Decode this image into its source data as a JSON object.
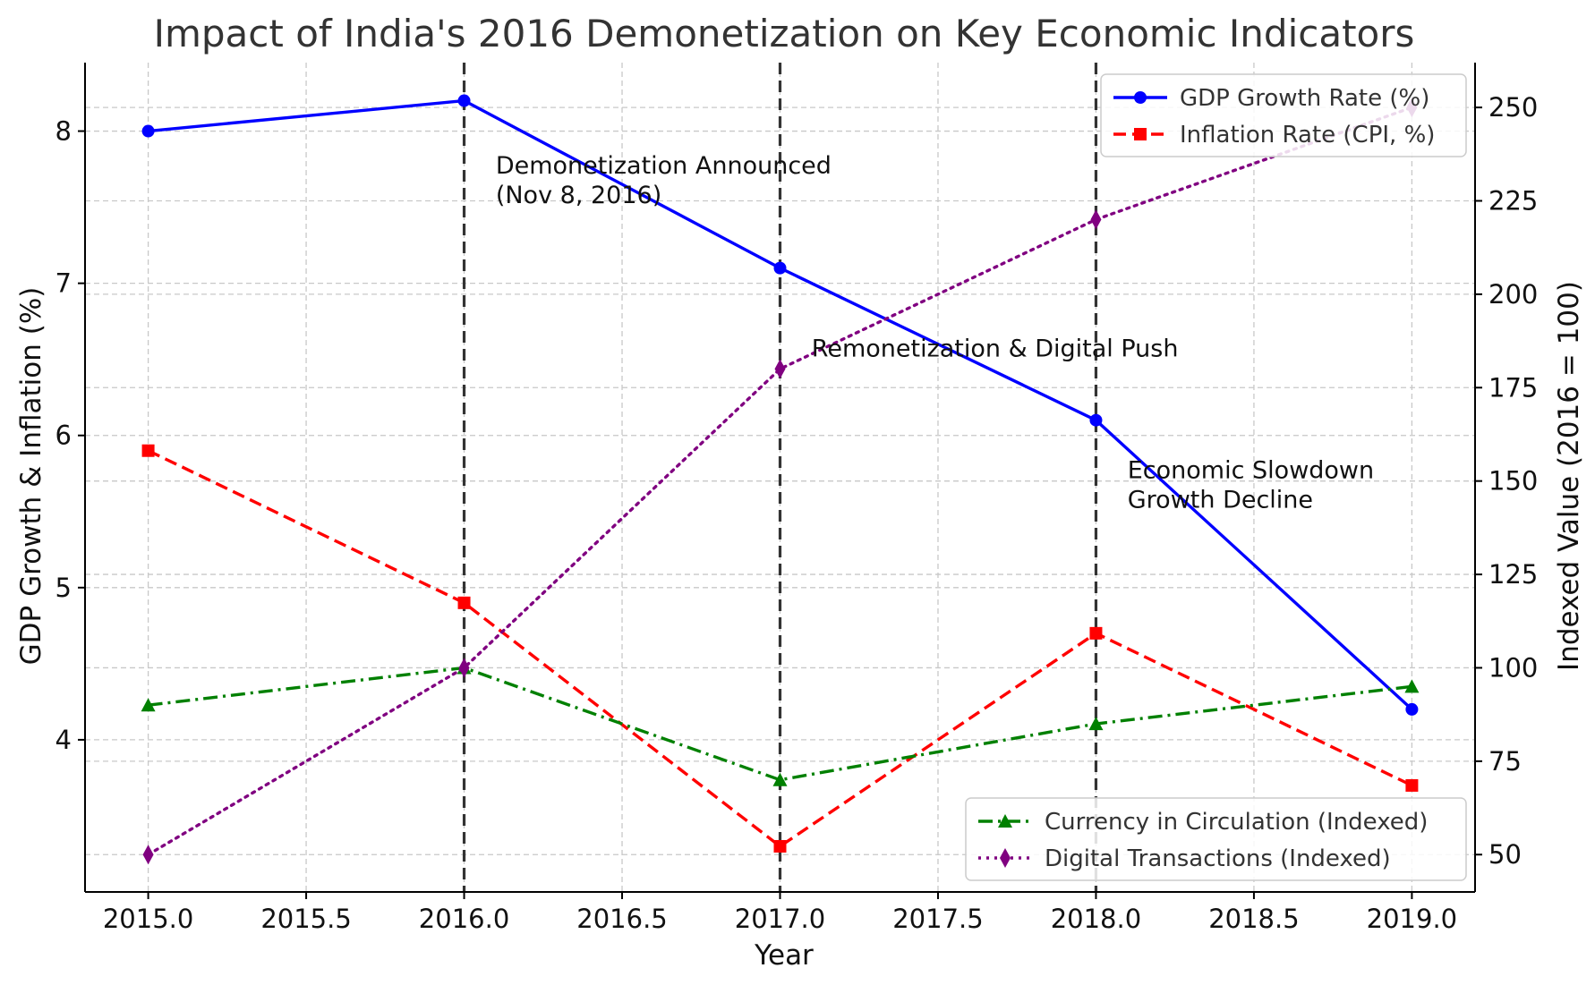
{
  "chart_data": {
    "type": "line",
    "title": "Impact of India's 2016 Demonetization on Key Economic Indicators",
    "xlabel": "Year",
    "ylabel_left": "GDP Growth & Inflation (%)",
    "ylabel_right": "Indexed Value (2016 = 100)",
    "x": [
      2015,
      2016,
      2017,
      2018,
      2019
    ],
    "xlim": [
      2014.8,
      2019.2
    ],
    "ylim_left": [
      3.0,
      8.45
    ],
    "ylim_right": [
      40,
      262
    ],
    "xticks": [
      2015.0,
      2015.5,
      2016.0,
      2016.5,
      2017.0,
      2017.5,
      2018.0,
      2018.5,
      2019.0
    ],
    "xtick_labels": [
      "2015.0",
      "2015.5",
      "2016.0",
      "2016.5",
      "2017.0",
      "2017.5",
      "2018.0",
      "2018.5",
      "2019.0"
    ],
    "yticks_left": [
      4,
      5,
      6,
      7,
      8
    ],
    "ytick_labels_left": [
      "4",
      "5",
      "6",
      "7",
      "8"
    ],
    "yticks_right": [
      50,
      75,
      100,
      125,
      150,
      175,
      200,
      225,
      250
    ],
    "ytick_labels_right": [
      "50",
      "75",
      "100",
      "125",
      "150",
      "175",
      "200",
      "225",
      "250"
    ],
    "grid": true,
    "series": [
      {
        "name": "GDP Growth Rate (%)",
        "axis": "left",
        "values": [
          8.0,
          8.2,
          7.1,
          6.1,
          4.2
        ],
        "color": "#0000ff",
        "style": "solid",
        "marker": "circle"
      },
      {
        "name": "Inflation Rate (CPI, %)",
        "axis": "left",
        "values": [
          5.9,
          4.9,
          3.3,
          4.7,
          3.7
        ],
        "color": "#ff0000",
        "style": "dashed",
        "marker": "square"
      },
      {
        "name": "Currency in Circulation (Indexed)",
        "axis": "right",
        "values": [
          90,
          100,
          70,
          85,
          95
        ],
        "color": "#008000",
        "style": "dashdot",
        "marker": "triangle"
      },
      {
        "name": "Digital Transactions (Indexed)",
        "axis": "right",
        "values": [
          50,
          100,
          180,
          220,
          250
        ],
        "color": "#800080",
        "style": "dotted",
        "marker": "diamond"
      }
    ],
    "vlines": [
      2016,
      2017,
      2018
    ],
    "annotations": [
      {
        "x": 2016.1,
        "y": 7.72,
        "lines": [
          "Demonetization Announced",
          "(Nov 8, 2016)"
        ]
      },
      {
        "x": 2017.1,
        "y": 6.52,
        "lines": [
          "Remonetization & Digital Push"
        ]
      },
      {
        "x": 2018.1,
        "y": 5.72,
        "lines": [
          "Economic Slowdown",
          "Growth Decline"
        ]
      }
    ],
    "legend_upper": {
      "placement": "top-right",
      "entries": [
        "GDP Growth Rate (%)",
        "Inflation Rate (CPI, %)"
      ]
    },
    "legend_lower": {
      "placement": "bottom-right",
      "entries": [
        "Currency in Circulation (Indexed)",
        "Digital Transactions (Indexed)"
      ]
    }
  }
}
